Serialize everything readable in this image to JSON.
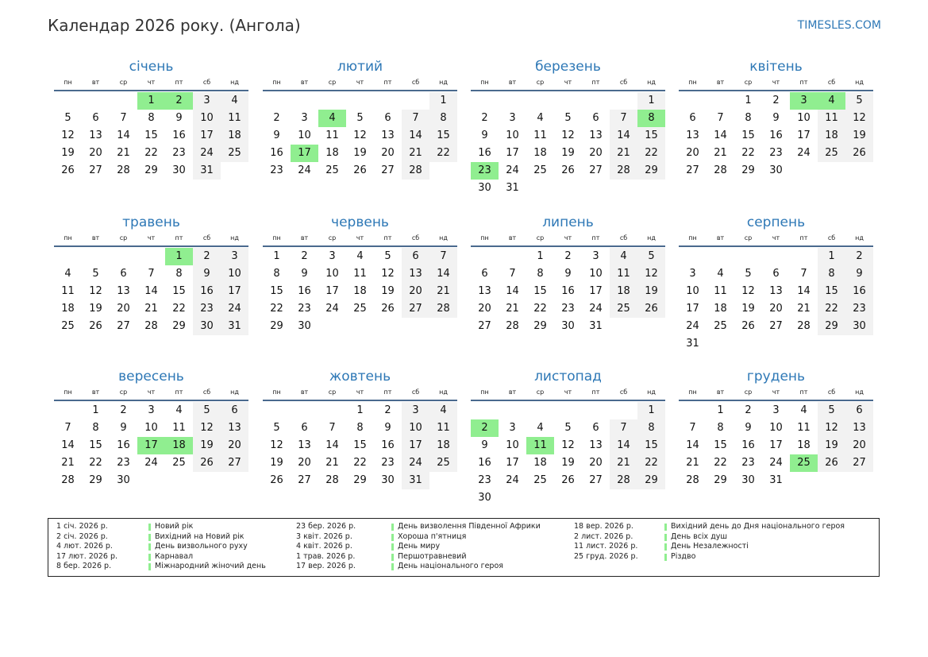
{
  "title": "Календар 2026 року. (Ангола)",
  "site": "TIMESLES.COM",
  "weekdays": [
    "пн",
    "вт",
    "ср",
    "чт",
    "пт",
    "сб",
    "нд"
  ],
  "colors": {
    "holiday": "#90ee90",
    "weekend": "#f2f2f2",
    "accent": "#2e78b6"
  },
  "months": [
    {
      "name": "січень",
      "offset": 3,
      "days": 31,
      "holidays": [
        1,
        2
      ]
    },
    {
      "name": "лютий",
      "offset": 6,
      "days": 28,
      "holidays": [
        4,
        17
      ]
    },
    {
      "name": "березень",
      "offset": 6,
      "days": 31,
      "holidays": [
        8,
        23
      ]
    },
    {
      "name": "квітень",
      "offset": 2,
      "days": 30,
      "holidays": [
        3,
        4
      ]
    },
    {
      "name": "травень",
      "offset": 4,
      "days": 31,
      "holidays": [
        1
      ]
    },
    {
      "name": "червень",
      "offset": 0,
      "days": 30,
      "holidays": []
    },
    {
      "name": "липень",
      "offset": 2,
      "days": 31,
      "holidays": []
    },
    {
      "name": "серпень",
      "offset": 5,
      "days": 31,
      "holidays": []
    },
    {
      "name": "вересень",
      "offset": 1,
      "days": 30,
      "holidays": [
        17,
        18
      ]
    },
    {
      "name": "жовтень",
      "offset": 3,
      "days": 31,
      "holidays": []
    },
    {
      "name": "листопад",
      "offset": 6,
      "days": 30,
      "holidays": [
        2,
        11
      ]
    },
    {
      "name": "грудень",
      "offset": 1,
      "days": 31,
      "holidays": [
        25
      ]
    }
  ],
  "legend": [
    [
      {
        "date": "1 січ. 2026 р.",
        "name": "Новий рік"
      },
      {
        "date": "2 січ. 2026 р.",
        "name": "Вихідний на Новий рік"
      },
      {
        "date": "4 лют. 2026 р.",
        "name": "День визвольного руху"
      },
      {
        "date": "17 лют. 2026 р.",
        "name": "Карнавал"
      },
      {
        "date": "8 бер. 2026 р.",
        "name": "Міжнародний жіночий день"
      }
    ],
    [
      {
        "date": "23 бер. 2026 р.",
        "name": "День визволення Південної Африки"
      },
      {
        "date": "3 квіт. 2026 р.",
        "name": "Хороша п'ятниця"
      },
      {
        "date": "4 квіт. 2026 р.",
        "name": "День миру"
      },
      {
        "date": "1 трав. 2026 р.",
        "name": "Першотравневий"
      },
      {
        "date": "17 вер. 2026 р.",
        "name": "День національного героя"
      }
    ],
    [
      {
        "date": "18 вер. 2026 р.",
        "name": "Вихідний день до Дня національного героя"
      },
      {
        "date": "2 лист. 2026 р.",
        "name": "День всіх душ"
      },
      {
        "date": "11 лист. 2026 р.",
        "name": "День Незалежності"
      },
      {
        "date": "25 груд. 2026 р.",
        "name": "Різдво"
      }
    ]
  ]
}
